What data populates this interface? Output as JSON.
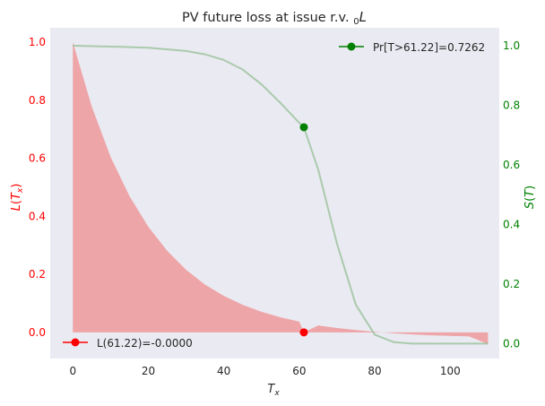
{
  "chart_data": {
    "type": "area",
    "title": "PV future loss at issue r.v.",
    "title_symbol": "0L",
    "xlabel": "T_x",
    "ylabel_left": "L(T_x)",
    "ylabel_right": "S(T)",
    "xlim": [
      -6,
      113
    ],
    "ylim_left": [
      -0.09,
      1.05
    ],
    "ylim_right": [
      -0.05,
      1.06
    ],
    "x_ticks": [
      0,
      20,
      40,
      60,
      80,
      100
    ],
    "y_ticks_left": [
      0.0,
      0.2,
      0.4,
      0.6,
      0.8,
      1.0
    ],
    "y_ticks_right": [
      0.0,
      0.2,
      0.4,
      0.6,
      0.8,
      1.0
    ],
    "x_tick_labels": [
      "0",
      "20",
      "40",
      "60",
      "80",
      "100"
    ],
    "y_tick_labels_left": [
      "0.0",
      "0.2",
      "0.4",
      "0.6",
      "0.8",
      "1.0"
    ],
    "y_tick_labels_right": [
      "0.0",
      "0.2",
      "0.4",
      "0.6",
      "0.8",
      "1.0"
    ],
    "grid": false,
    "background": "#eaeaf2",
    "loss_series": {
      "name": "L(T_x)",
      "color": "#f08080",
      "x": [
        0,
        5,
        10,
        15,
        20,
        25,
        30,
        35,
        40,
        45,
        50,
        55,
        60,
        61.22,
        65,
        70,
        75,
        80,
        85,
        90,
        95,
        100,
        105,
        110
      ],
      "y": [
        1.0,
        0.779,
        0.605,
        0.47,
        0.364,
        0.281,
        0.216,
        0.165,
        0.126,
        0.095,
        0.071,
        0.052,
        0.037,
        0.0,
        0.024,
        0.015,
        0.008,
        0.002,
        -0.003,
        -0.007,
        -0.01,
        -0.012,
        -0.014,
        -0.04
      ]
    },
    "survival_series": {
      "name": "S(T)",
      "color": "#8fbc8f",
      "x": [
        0,
        10,
        20,
        30,
        35,
        40,
        45,
        50,
        55,
        60,
        61.22,
        65,
        70,
        75,
        80,
        85,
        90,
        100,
        110
      ],
      "y": [
        1.0,
        0.997,
        0.993,
        0.982,
        0.971,
        0.952,
        0.92,
        0.87,
        0.808,
        0.741,
        0.7262,
        0.585,
        0.335,
        0.13,
        0.03,
        0.005,
        0.0,
        0.0,
        0.0
      ]
    },
    "markers": [
      {
        "series": "loss",
        "x": 61.22,
        "y": 0.0,
        "color": "#ff0000",
        "label": "L(61.22)=-0.0000"
      },
      {
        "series": "survival",
        "x": 61.22,
        "y": 0.7262,
        "color": "#008000",
        "label": "Pr[T>61.22]=0.7262"
      }
    ],
    "legend_left": {
      "placement": "lower-left",
      "label": "L(61.22)=-0.0000",
      "color": "#ff0000"
    },
    "legend_right": {
      "placement": "upper-right",
      "label": "Pr[T>61.22]=0.7262",
      "color": "#008000"
    },
    "axis_colors": {
      "left": "#ff0000",
      "right": "#008000",
      "x": "#262626"
    }
  }
}
